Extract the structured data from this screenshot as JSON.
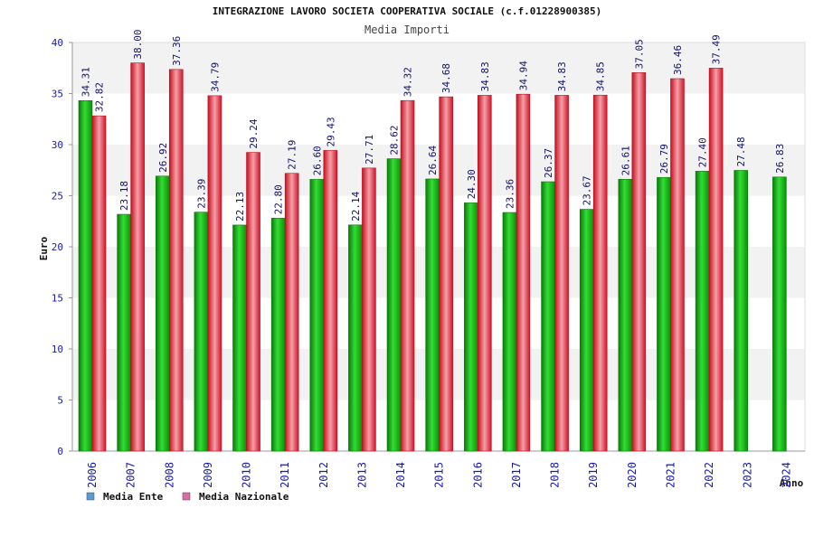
{
  "chart_data": {
    "type": "bar",
    "title": "INTEGRAZIONE LAVORO SOCIETA COOPERATIVA SOCIALE (c.f.01228900385)",
    "subtitle": "Media Importi",
    "ylabel": "Euro",
    "xlabel": "Anno",
    "ylim": [
      0,
      40
    ],
    "yticks": [
      0,
      5,
      10,
      15,
      20,
      25,
      30,
      35,
      40
    ],
    "categories": [
      "2006",
      "2007",
      "2008",
      "2009",
      "2010",
      "2011",
      "2012",
      "2013",
      "2014",
      "2015",
      "2016",
      "2017",
      "2018",
      "2019",
      "2020",
      "2021",
      "2022",
      "2023",
      "2024"
    ],
    "series": [
      {
        "name": "Media Ente",
        "color": "#0aa00a",
        "legend_color": "#5b9bd5",
        "values": [
          34.31,
          23.18,
          26.92,
          23.39,
          22.13,
          22.8,
          26.6,
          22.14,
          28.62,
          26.64,
          24.3,
          23.36,
          26.37,
          23.67,
          26.61,
          26.79,
          27.4,
          27.48,
          26.83
        ],
        "labels": [
          "34.31",
          "23.18",
          "26.92",
          "23.39",
          "22.13",
          "22.80",
          "26.60",
          "22.14",
          "28.62",
          "26.64",
          "24.30",
          "23.36",
          "26.37",
          "23.67",
          "26.61",
          "26.79",
          "27.40",
          "27.48",
          "26.83"
        ]
      },
      {
        "name": "Media Nazionale",
        "color": "#e8182a",
        "legend_color": "#d96ca6",
        "values": [
          32.82,
          38.0,
          37.36,
          34.79,
          29.24,
          27.19,
          29.43,
          27.71,
          34.32,
          34.68,
          34.83,
          34.94,
          34.83,
          34.85,
          37.05,
          36.46,
          37.49,
          null,
          null
        ],
        "labels": [
          "32.82",
          "38.00",
          "37.36",
          "34.79",
          "29.24",
          "27.19",
          "29.43",
          "27.71",
          "34.32",
          "34.68",
          "34.83",
          "34.94",
          "34.83",
          "34.85",
          "37.05",
          "36.46",
          "37.49",
          null,
          null
        ]
      }
    ],
    "grid": "horizontal-bands",
    "legend_position": "bottom-left"
  }
}
